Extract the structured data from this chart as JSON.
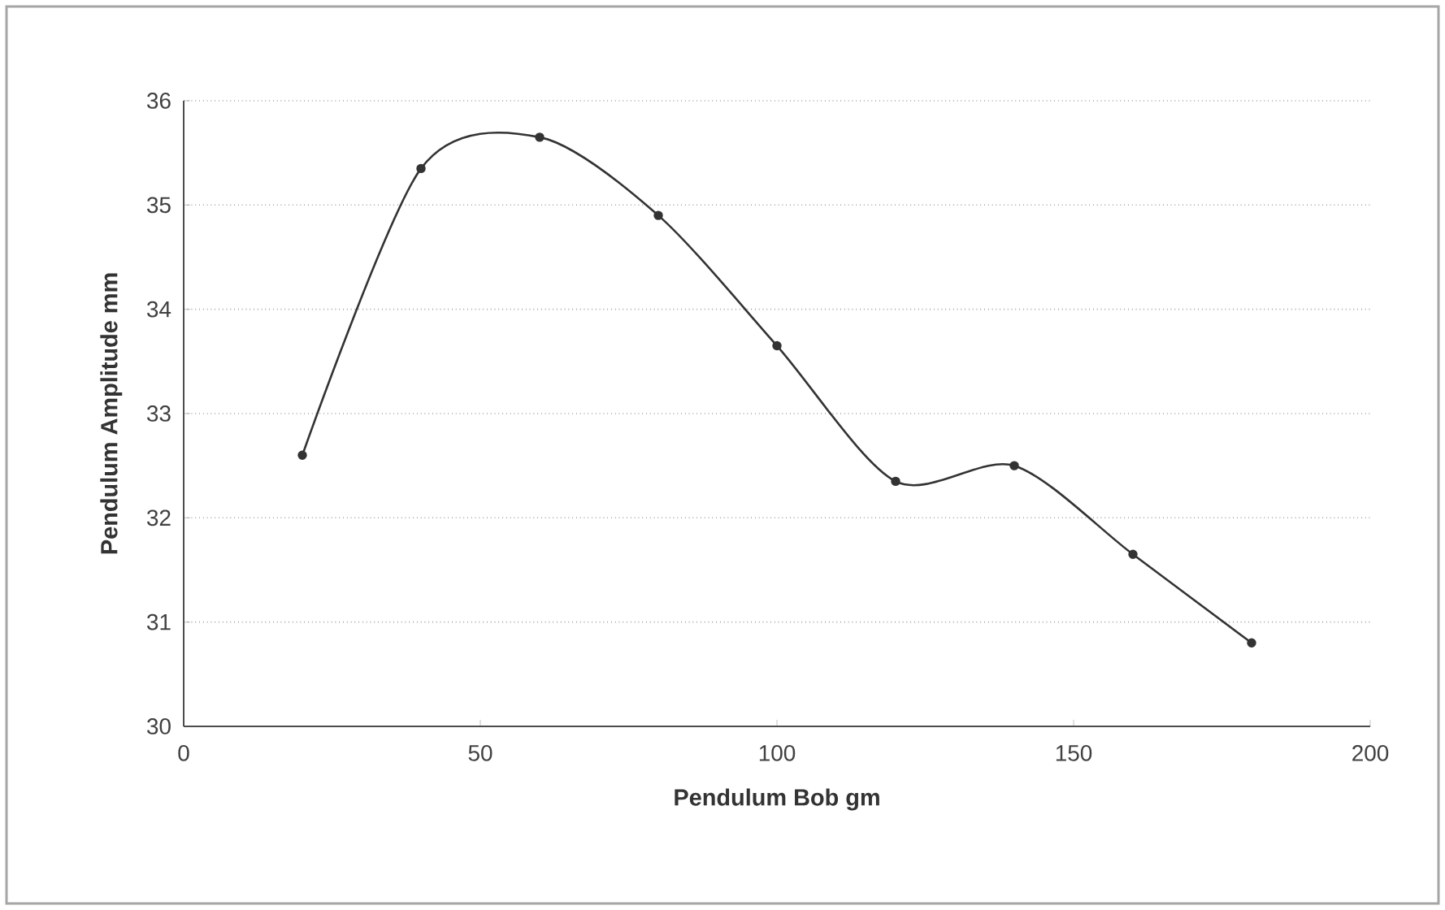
{
  "chart_data": {
    "type": "line",
    "xlabel": "Pendulum Bob  gm",
    "ylabel": "Pendulum Amplitude mm",
    "x": [
      20,
      40,
      60,
      80,
      100,
      120,
      140,
      160,
      180
    ],
    "series": [
      {
        "color": "#333333",
        "values": [
          32.6,
          35.35,
          35.65,
          34.9,
          33.65,
          32.35,
          32.5,
          31.65,
          30.8
        ]
      }
    ],
    "xlim": [
      0,
      200
    ],
    "xticks": [
      0,
      50,
      100,
      150,
      200
    ],
    "ylim": [
      30,
      36
    ],
    "yticks": [
      30,
      31,
      32,
      33,
      34,
      35,
      36
    ],
    "grid": "y",
    "marker": "circle",
    "line_style": "solid"
  }
}
